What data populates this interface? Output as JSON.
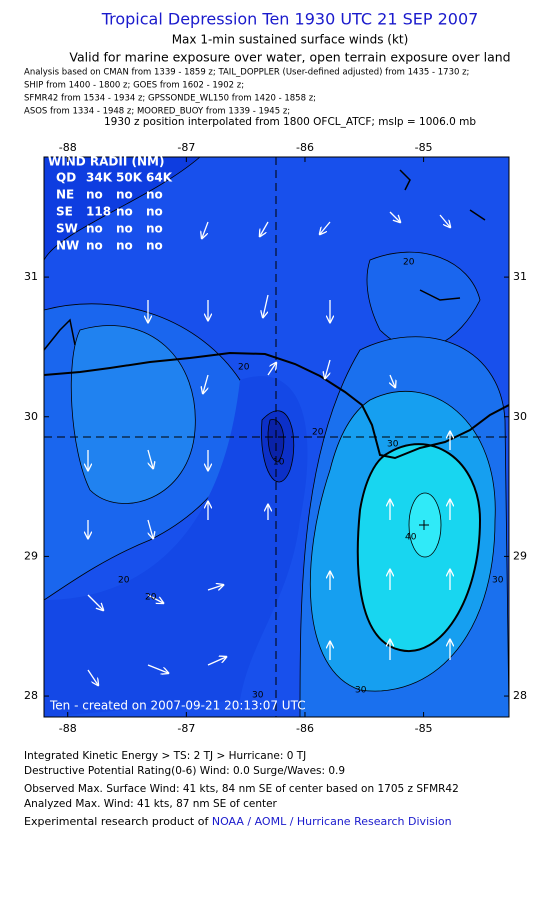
{
  "header": {
    "title": "Tropical Depression Ten 1930 UTC 21 SEP 2007",
    "subtitle": "Max 1-min sustained surface winds (kt)",
    "validity": "Valid for marine exposure over water, open terrain exposure over land",
    "sources": [
      "Analysis based on  CMAN from 1339 - 1859 z;  TAIL_DOPPLER (User-defined adjusted) from 1435 - 1730 z;",
      "SHIP from 1400 - 1800 z;  GOES from 1602 - 1902 z;",
      "SFMR42 from 1534 - 1934 z;  GPSSONDE_WL150 from 1420 - 1858 z;",
      "ASOS from 1334 - 1948 z;  MOORED_BUOY from 1339 - 1945 z;"
    ],
    "position": "1930 z position interpolated from 1800 OFCL_ATCF; mslp = 1006.0 mb"
  },
  "map": {
    "xlim": [
      -88.2,
      -84.28
    ],
    "ylim": [
      27.85,
      31.86
    ],
    "xticks": [
      -88,
      -87,
      -86,
      -85
    ],
    "yticks": [
      28,
      29,
      30,
      31
    ],
    "wind_radii": {
      "title": "WIND RADII (NM)",
      "rows": [
        [
          "QD",
          "34K",
          "50K",
          "64K"
        ],
        [
          "NE",
          "no",
          "no",
          "no"
        ],
        [
          "SE",
          118,
          "no",
          "no"
        ],
        [
          "SW",
          "no",
          "no",
          "no"
        ],
        [
          "NW",
          "no",
          "no",
          "no"
        ]
      ]
    },
    "contour_labels": [
      "20",
      "30",
      "20",
      "10",
      "20",
      "40",
      "30",
      "20",
      "30",
      "30",
      "20"
    ],
    "footer": "Ten - created on 2007-09-21 20:13:07 UTC"
  },
  "footer": {
    "lines": [
      "Integrated Kinetic Energy > TS: 2 TJ   > Hurricane: 0 TJ",
      "Destructive Potential Rating(0-6)   Wind: 0.0 Surge/Waves: 0.9",
      "Observed Max. Surface Wind: 41 kts, 84 nm SE of center based on 1705 z SFMR42",
      "Analyzed Max. Wind: 41 kts, 87 nm SE of center"
    ],
    "credit": "Experimental research product of ",
    "credit_link": "NOAA / AOML / Hurricane Research Division"
  }
}
